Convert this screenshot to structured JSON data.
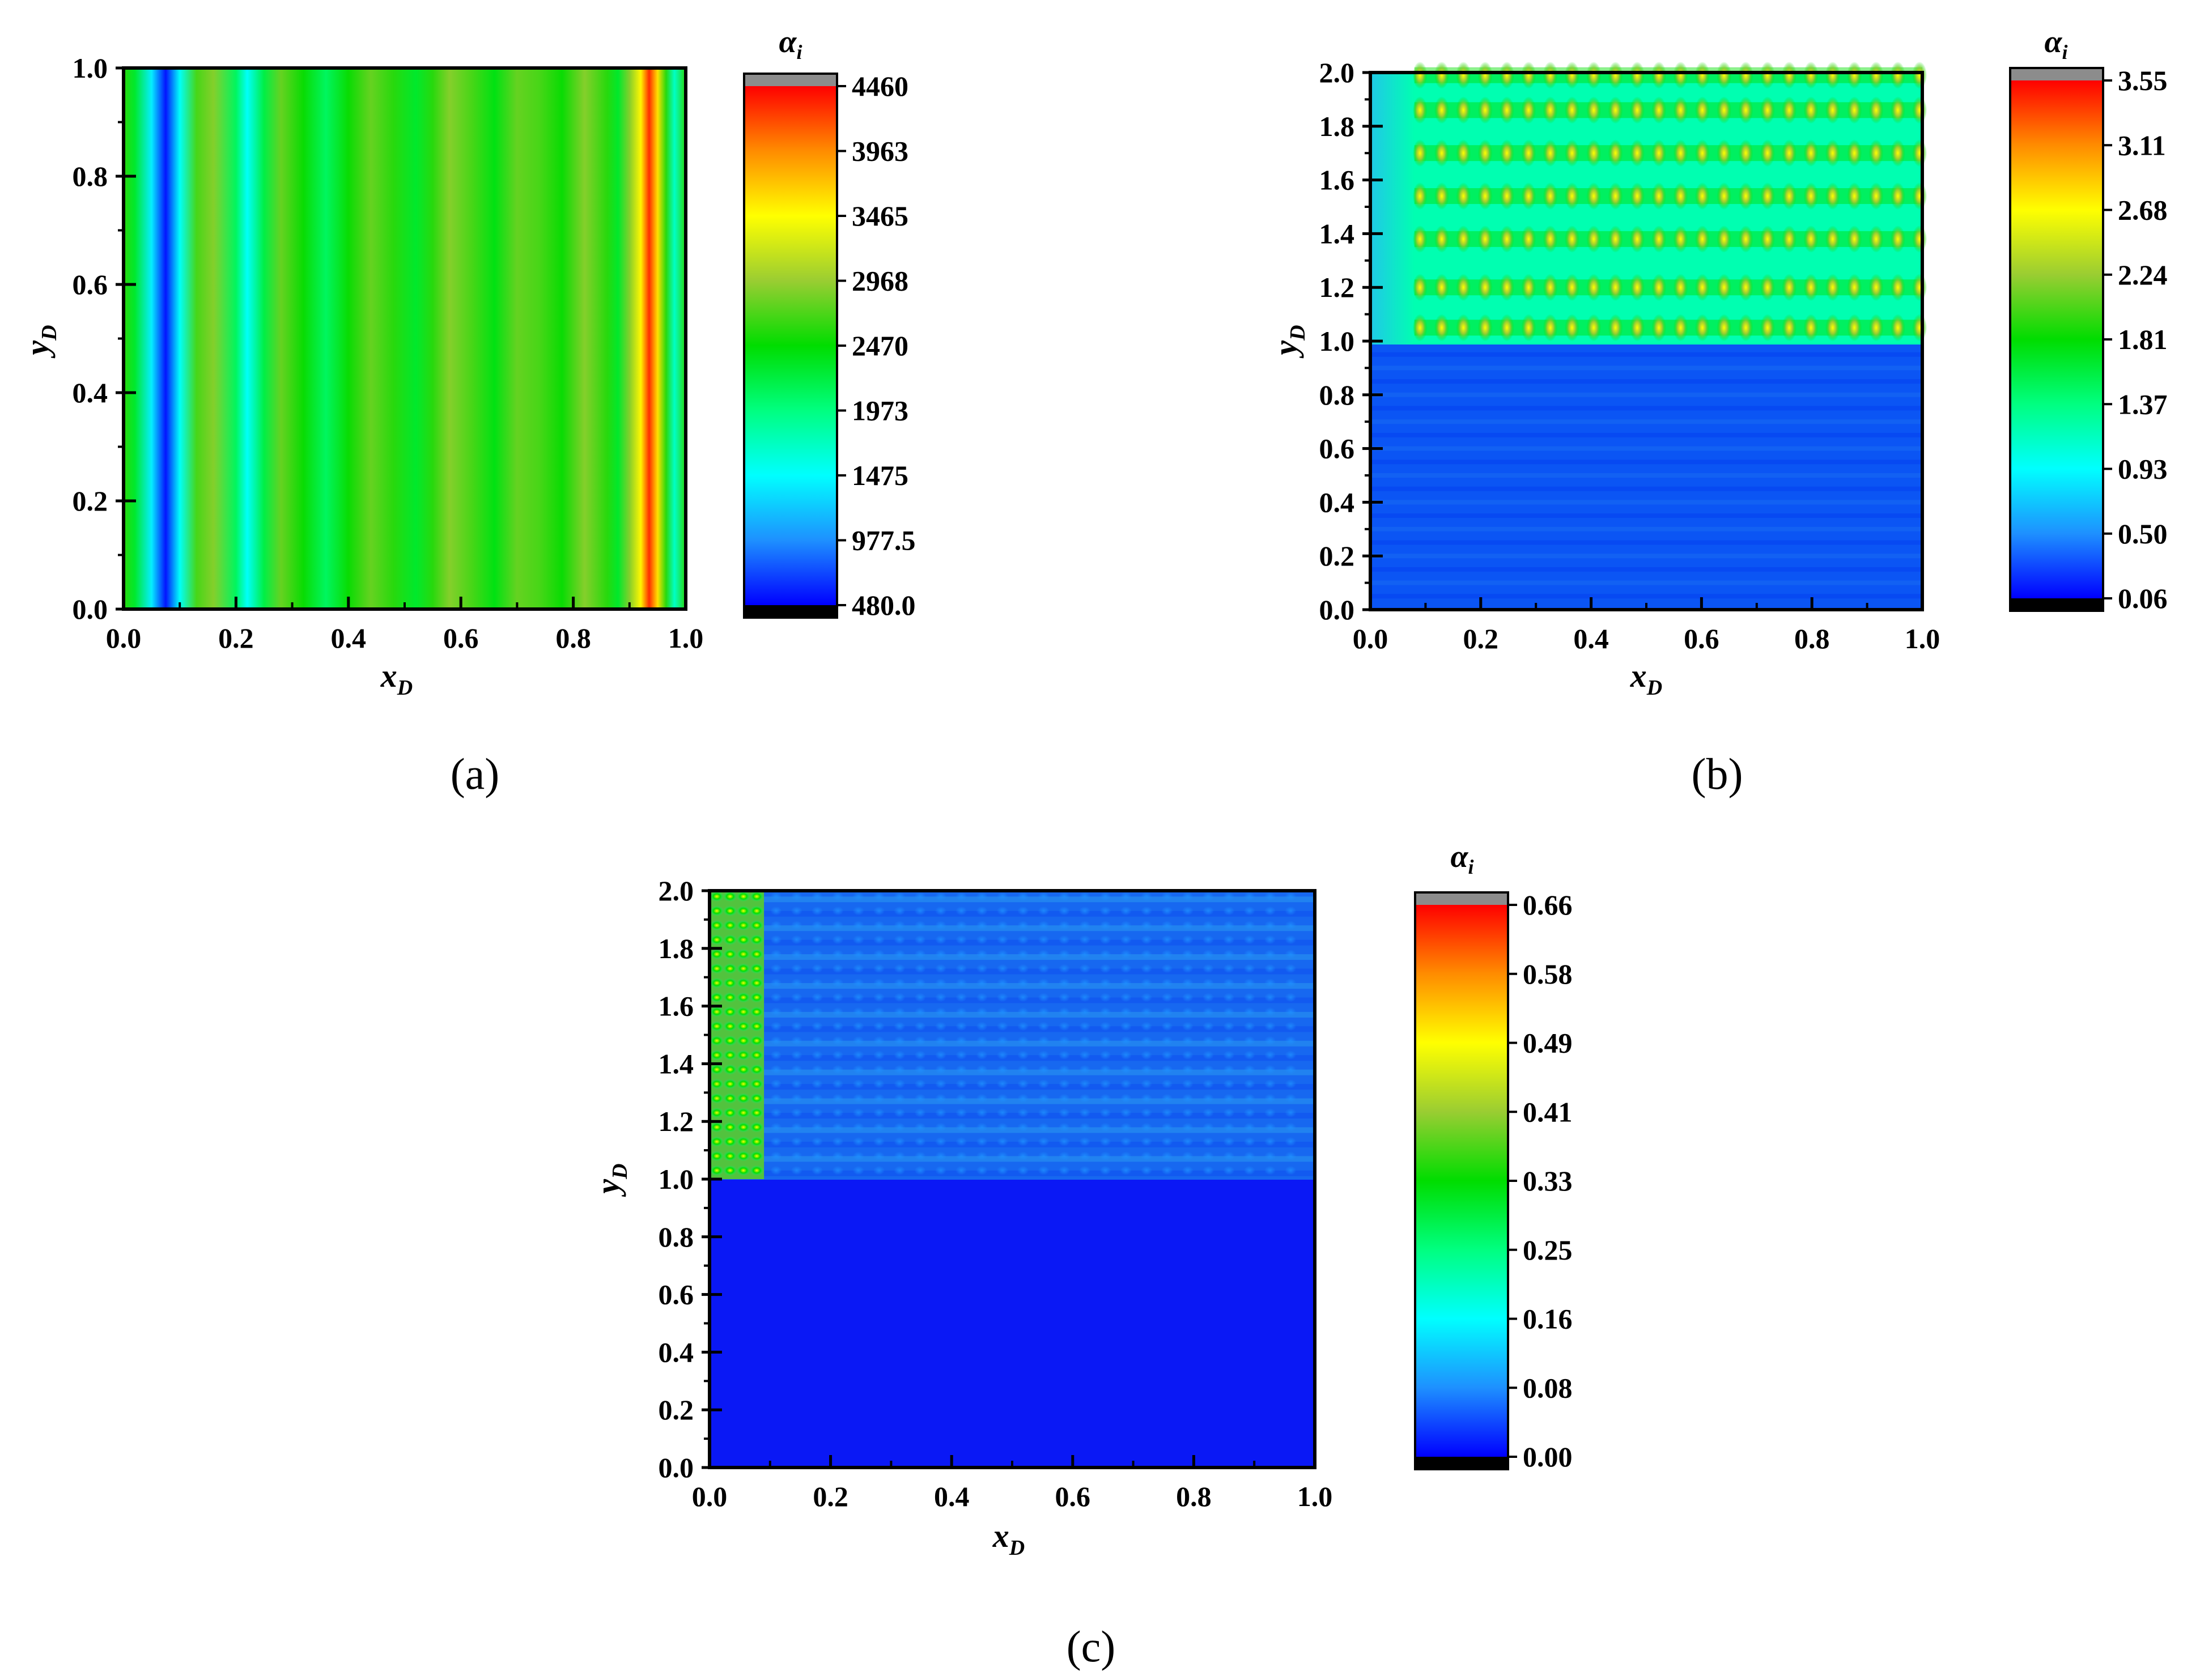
{
  "chart_data": [
    {
      "id": "a",
      "type": "heatmap",
      "caption": "(a)",
      "xlabel": "x",
      "xlabel_sub": "D",
      "ylabel": "y",
      "ylabel_sub": "D",
      "colorbar_title": "α",
      "colorbar_title_sub": "i",
      "xlim": [
        0.0,
        1.0
      ],
      "ylim": [
        0.0,
        1.0
      ],
      "xticks": [
        "0.0",
        "0.2",
        "0.4",
        "0.6",
        "0.8",
        "1.0"
      ],
      "yticks": [
        "0.0",
        "0.2",
        "0.4",
        "0.6",
        "0.8",
        "1.0"
      ],
      "colorbar_range": [
        480.0,
        4460
      ],
      "colorbar_ticks": [
        "480.0",
        "977.5",
        "1475",
        "1973",
        "2470",
        "2968",
        "3465",
        "3963",
        "4460"
      ],
      "field_description_profile": {
        "x": [
          0.0,
          0.02,
          0.05,
          0.075,
          0.1,
          0.13,
          0.16,
          0.2,
          0.22,
          0.25,
          0.28,
          0.32,
          0.36,
          0.4,
          0.44,
          0.48,
          0.52,
          0.55,
          0.58,
          0.62,
          0.66,
          0.7,
          0.74,
          0.78,
          0.82,
          0.86,
          0.88,
          0.9,
          0.92,
          0.935,
          0.95,
          0.965,
          0.98,
          1.0
        ],
        "value": [
          2600,
          2300,
          1400,
          550,
          1500,
          2700,
          2900,
          2100,
          1500,
          2200,
          2800,
          2500,
          2100,
          2500,
          2800,
          2600,
          2300,
          2600,
          2900,
          2700,
          2400,
          2800,
          2700,
          2500,
          2900,
          2600,
          2300,
          2900,
          3500,
          4300,
          3600,
          2600,
          1700,
          2600
        ]
      }
    },
    {
      "id": "b",
      "type": "heatmap",
      "caption": "(b)",
      "xlabel": "x",
      "xlabel_sub": "D",
      "ylabel": "y",
      "ylabel_sub": "D",
      "colorbar_title": "α",
      "colorbar_title_sub": "i",
      "xlim": [
        0.0,
        1.0
      ],
      "ylim": [
        0.0,
        2.0
      ],
      "xticks": [
        "0.0",
        "0.2",
        "0.4",
        "0.6",
        "0.8",
        "1.0"
      ],
      "yticks": [
        "0.0",
        "0.2",
        "0.4",
        "0.6",
        "0.8",
        "1.0",
        "1.2",
        "1.4",
        "1.6",
        "1.8",
        "2.0"
      ],
      "colorbar_range": [
        0.06,
        3.55
      ],
      "colorbar_ticks": [
        "0.06",
        "0.50",
        "0.93",
        "1.37",
        "1.81",
        "2.24",
        "2.68",
        "3.11",
        "3.55"
      ],
      "lower_region_value": 0.45,
      "upper_region_background": 1.2,
      "upper_region_peak": 2.4,
      "upper_region_x_start": 0.08,
      "peak_rows_y": [
        1.05,
        1.2,
        1.38,
        1.54,
        1.7,
        1.86,
        1.99
      ],
      "peak_columns": 24
    },
    {
      "id": "c",
      "type": "heatmap",
      "caption": "(c)",
      "xlabel": "x",
      "xlabel_sub": "D",
      "ylabel": "y",
      "ylabel_sub": "D",
      "colorbar_title": "α",
      "colorbar_title_sub": "i",
      "xlim": [
        0.0,
        1.0
      ],
      "ylim": [
        0.0,
        2.0
      ],
      "xticks": [
        "0.0",
        "0.2",
        "0.4",
        "0.6",
        "0.8",
        "1.0"
      ],
      "yticks": [
        "0.0",
        "0.2",
        "0.4",
        "0.6",
        "0.8",
        "1.0",
        "1.2",
        "1.4",
        "1.6",
        "1.8",
        "2.0"
      ],
      "colorbar_range": [
        0.0,
        0.66
      ],
      "colorbar_ticks": [
        "0.00",
        "0.08",
        "0.16",
        "0.25",
        "0.33",
        "0.41",
        "0.49",
        "0.58",
        "0.66"
      ],
      "lower_region_value": 0.0,
      "upper_region_background": 0.07,
      "upper_left_strip_x_end": 0.09,
      "upper_left_strip_value": 0.38,
      "peak_rows_y": [
        1.05,
        1.2,
        1.38,
        1.54,
        1.7,
        1.86,
        1.99
      ]
    }
  ],
  "colormap": {
    "under_color": "#000000",
    "over_color": "#8c8c8c",
    "stops": [
      "#0000ff",
      "#1e90ff",
      "#00ffff",
      "#00ff80",
      "#00dd00",
      "#9acd32",
      "#ffff00",
      "#ff8c00",
      "#ff0000"
    ]
  }
}
